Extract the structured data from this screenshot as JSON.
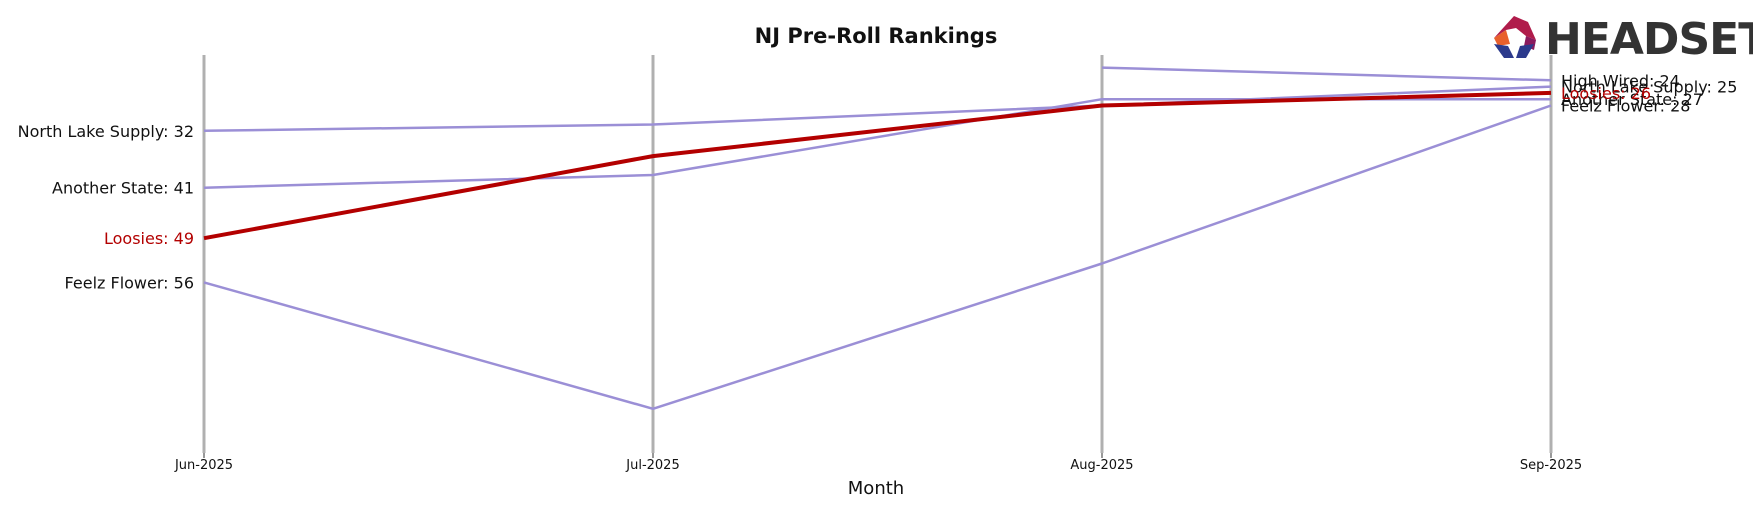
{
  "chart_data": {
    "type": "line",
    "title": "NJ Pre-Roll Rankings",
    "xlabel": "Month",
    "ylabel": "",
    "categories": [
      "Jun-2025",
      "Jul-2025",
      "Aug-2025",
      "Sep-2025"
    ],
    "y_inverted": true,
    "ylim": [
      20,
      83
    ],
    "grid": "vertical",
    "series": [
      {
        "name": "High Wired",
        "values": [
          null,
          null,
          22,
          24
        ],
        "color": "#9b8fd6",
        "highlight": false
      },
      {
        "name": "North Lake Supply",
        "values": [
          32,
          31,
          28,
          25
        ],
        "color": "#9b8fd6",
        "highlight": false
      },
      {
        "name": "Another State",
        "values": [
          41,
          39,
          27,
          27
        ],
        "color": "#9b8fd6",
        "highlight": false
      },
      {
        "name": "Loosies",
        "values": [
          49,
          36,
          28,
          26
        ],
        "color": "#b30000",
        "highlight": true
      },
      {
        "name": "Feelz Flower",
        "values": [
          56,
          76,
          53,
          28
        ],
        "color": "#9b8fd6",
        "highlight": false
      }
    ]
  },
  "logo": {
    "text": "HEADSET",
    "icon": "headset-logo-icon"
  }
}
